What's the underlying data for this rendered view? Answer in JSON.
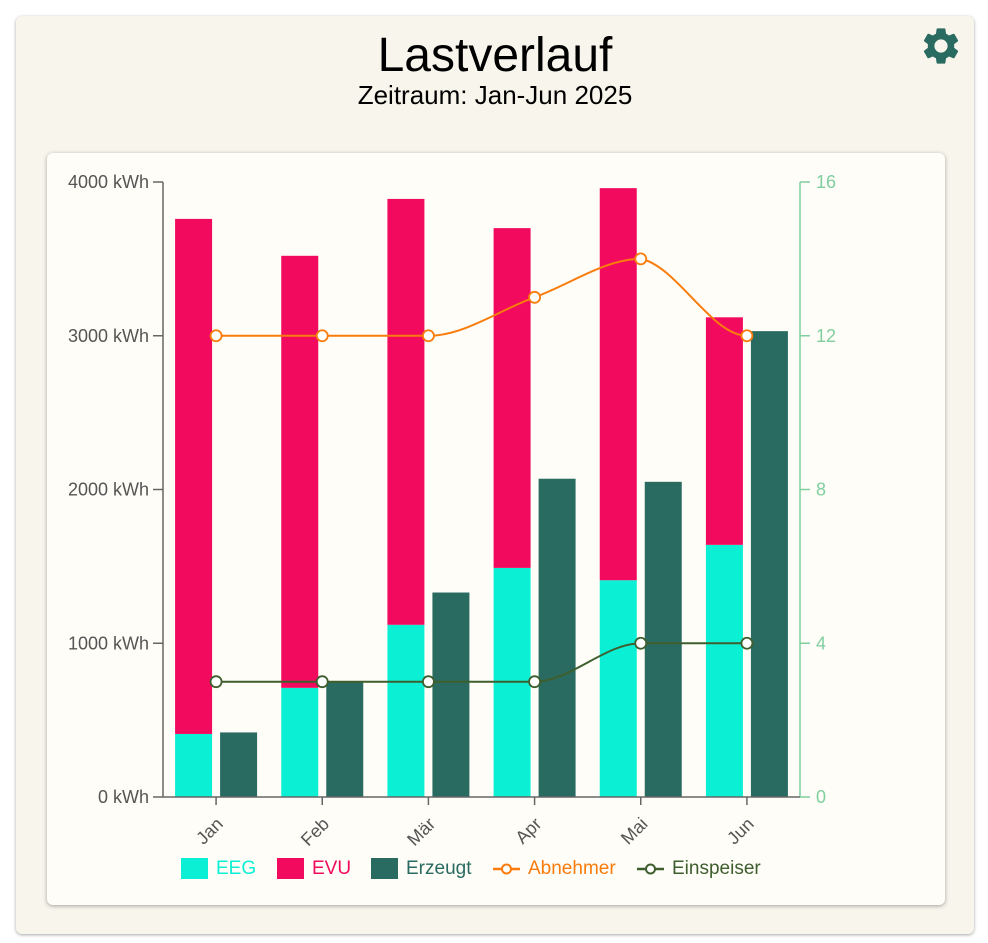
{
  "header": {
    "title": "Lastverlauf",
    "subtitle": "Zeitraum: Jan-Jun 2025",
    "settings_icon": "gear-icon"
  },
  "colors": {
    "eeg": "#0bf0d4",
    "evu": "#f20a5e",
    "erzeugt": "#2a6b61",
    "abnehmer": "#f97c0c",
    "einspeiser": "#3e5e2e",
    "right_axis": "#7fcf9f",
    "left_axis": "#666666"
  },
  "chart_data": {
    "type": "bar",
    "categories": [
      "Jan",
      "Feb",
      "Mär",
      "Apr",
      "Mai",
      "Jun"
    ],
    "bars": {
      "stacked": [
        {
          "name": "EEG",
          "values": [
            410,
            710,
            1120,
            1490,
            1410,
            1640
          ]
        },
        {
          "name": "EVU",
          "values": [
            3350,
            2810,
            2770,
            2210,
            2550,
            1480
          ]
        }
      ],
      "separate": [
        {
          "name": "Erzeugt",
          "values": [
            420,
            750,
            1330,
            2070,
            2050,
            3030
          ]
        }
      ]
    },
    "lines": [
      {
        "name": "Abnehmer",
        "axis": "right",
        "values": [
          12,
          12,
          12,
          13,
          14,
          12
        ]
      },
      {
        "name": "Einspeiser",
        "axis": "right",
        "values": [
          3,
          3,
          3,
          3,
          4,
          4
        ]
      }
    ],
    "y_left": {
      "unit": "kWh",
      "ylim": [
        0,
        4000
      ],
      "ticks": [
        "0 kWh",
        "1000 kWh",
        "2000 kWh",
        "3000 kWh",
        "4000 kWh"
      ]
    },
    "y_right": {
      "ylim": [
        0,
        16
      ],
      "ticks": [
        "0",
        "4",
        "8",
        "12",
        "16"
      ]
    },
    "grid": false,
    "legend_position": "bottom"
  }
}
